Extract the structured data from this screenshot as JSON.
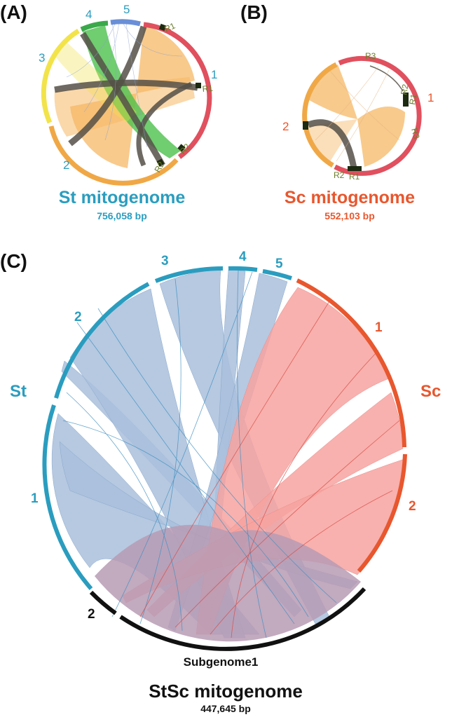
{
  "panels": {
    "a": {
      "label": "(A)",
      "title": "St mitogenome",
      "size": "756,058 bp",
      "chromosomes": [
        "1",
        "2",
        "3",
        "4",
        "5"
      ],
      "repeats": [
        "R1",
        "R1",
        "R2",
        "R2"
      ]
    },
    "b": {
      "label": "(B)",
      "title": "Sc mitogenome",
      "size": "552,103 bp",
      "chromosomes": [
        "1",
        "2"
      ],
      "repeats": [
        "R3",
        "R2",
        "R1",
        "R3",
        "R2",
        "R1"
      ]
    },
    "c": {
      "label": "(C)",
      "st_label": "St",
      "sc_label": "Sc",
      "st_chromosomes": [
        "1",
        "2",
        "3",
        "4",
        "5"
      ],
      "sc_chromosomes": [
        "1",
        "2"
      ],
      "stsc_chromosome": "2",
      "subgenome_label": "Subgenome1",
      "title": "StSc mitogenome",
      "size": "447,645 bp"
    }
  },
  "colors": {
    "st": "#2a9dbf",
    "sc": "#e8572e",
    "st_ribbon": "#a9c0dc",
    "sc_ribbon": "#f7a3a0",
    "stsc_ribbon": "#b79bb4",
    "stsc_arc": "#111111",
    "ring_orange": "#f0a846",
    "ring_red": "#e0505e",
    "ring_yellow": "#f2e34a",
    "ring_green": "#3aa94a",
    "ring_blue": "#6a8fd8",
    "link_green": "#4cc04c",
    "link_orange": "#f6b865",
    "link_dark": "#555048"
  }
}
